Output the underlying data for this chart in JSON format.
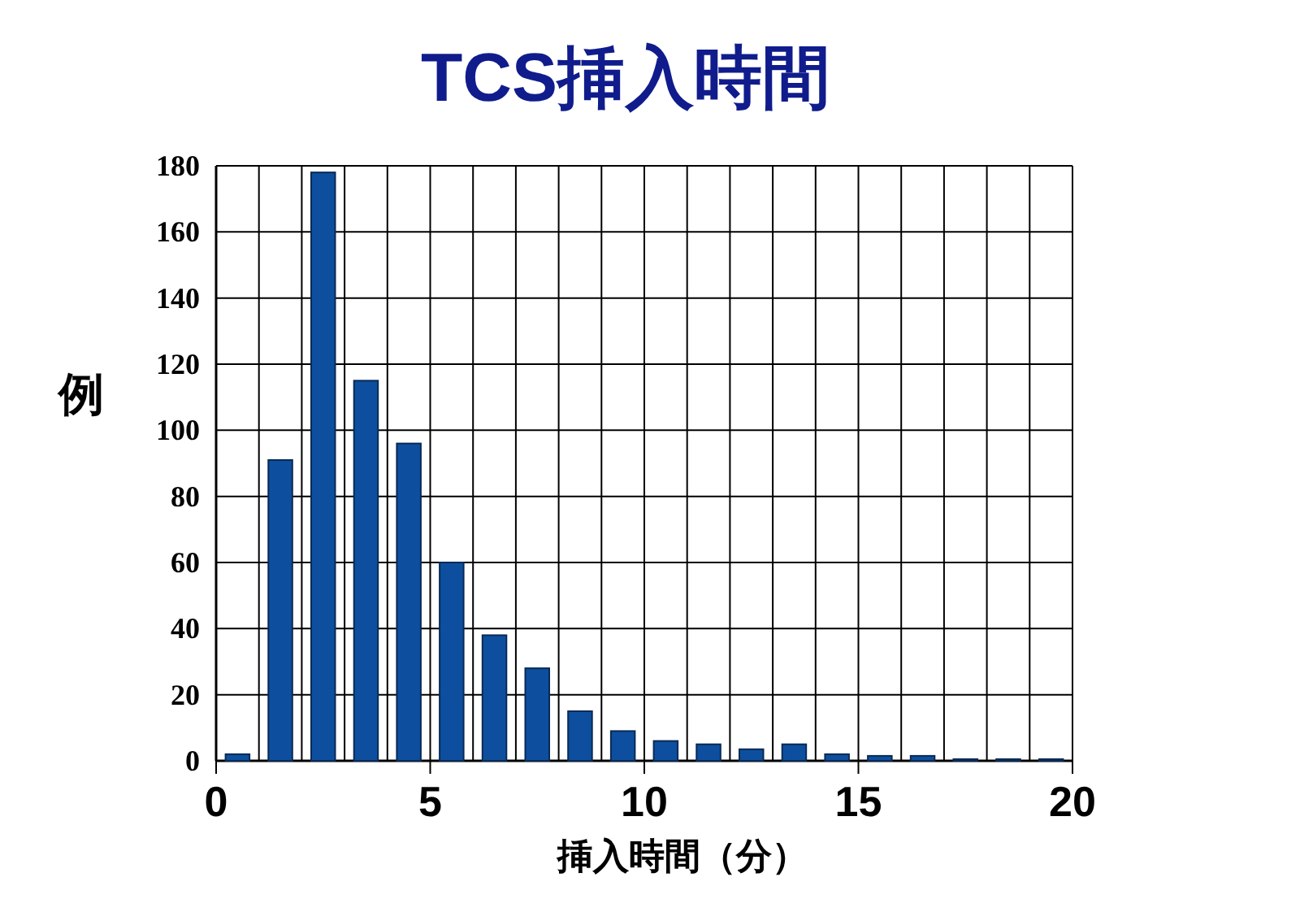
{
  "chart_data": {
    "type": "histogram",
    "title": "TCS挿入時間",
    "xlabel": "挿入時間（分）",
    "ylabel": "例",
    "bins": [
      0,
      1,
      2,
      3,
      4,
      5,
      6,
      7,
      8,
      9,
      10,
      11,
      12,
      13,
      14,
      15,
      16,
      17,
      18,
      19,
      20
    ],
    "values": [
      2,
      91,
      178,
      115,
      96,
      60,
      38,
      28,
      15,
      9,
      6,
      5,
      3.5,
      5,
      2,
      1.5,
      1.5,
      0.5,
      0.5,
      0.5
    ],
    "color": "#0d4f9e",
    "xlim": [
      0,
      20
    ],
    "xticks": [
      0,
      5,
      10,
      15,
      20
    ],
    "ylim": [
      0,
      180
    ],
    "yticks": [
      0,
      20,
      40,
      60,
      80,
      100,
      120,
      140,
      160,
      180
    ],
    "grid": true
  }
}
